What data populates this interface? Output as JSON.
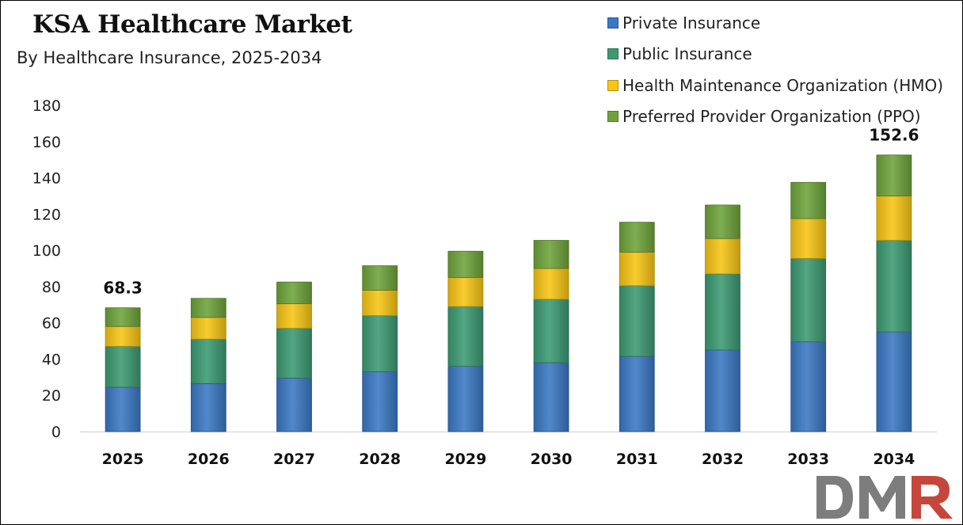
{
  "title": "KSA Healthcare Market",
  "subtitle": "By Healthcare Insurance, 2025-2034",
  "colors": {
    "private": "#3a78c3",
    "public": "#3c9a72",
    "hmo": "#f7c514",
    "ppo": "#6ea33a",
    "logo_dm": "#7d7d7d",
    "logo_r": "#c5473c"
  },
  "logo": {
    "text": "DMR"
  },
  "chart_data": {
    "type": "bar",
    "stacked": true,
    "categories": [
      "2025",
      "2026",
      "2027",
      "2028",
      "2029",
      "2030",
      "2031",
      "2032",
      "2033",
      "2034"
    ],
    "series": [
      {
        "name": "Private Insurance",
        "color": "#3a78c3",
        "values": [
          24.5,
          26.5,
          29.5,
          33.0,
          36.0,
          38.0,
          41.5,
          45.0,
          49.5,
          55.0
        ]
      },
      {
        "name": "Public Insurance",
        "color": "#3c9a72",
        "values": [
          22.5,
          24.5,
          27.5,
          31.0,
          33.0,
          35.0,
          39.0,
          42.0,
          46.0,
          50.5
        ]
      },
      {
        "name": "Health Maintenance Organization (HMO)",
        "color": "#f7c514",
        "values": [
          11.0,
          12.0,
          13.5,
          14.0,
          16.0,
          17.0,
          18.5,
          19.5,
          22.0,
          24.5
        ]
      },
      {
        "name": "Preferred Provider Organization (PPO)",
        "color": "#6ea33a",
        "values": [
          10.3,
          10.5,
          12.0,
          13.5,
          14.5,
          15.5,
          16.5,
          18.5,
          20.0,
          22.6
        ]
      }
    ],
    "data_labels": [
      {
        "category": "2025",
        "text": "68.3"
      },
      {
        "category": "2034",
        "text": "152.6"
      }
    ],
    "ylim": [
      0,
      180
    ],
    "yticks": [
      "0",
      "20",
      "40",
      "60",
      "80",
      "100",
      "120",
      "140",
      "160",
      "180"
    ],
    "xlabel": "",
    "ylabel": "",
    "grid": false,
    "legend_position": "top-right"
  }
}
